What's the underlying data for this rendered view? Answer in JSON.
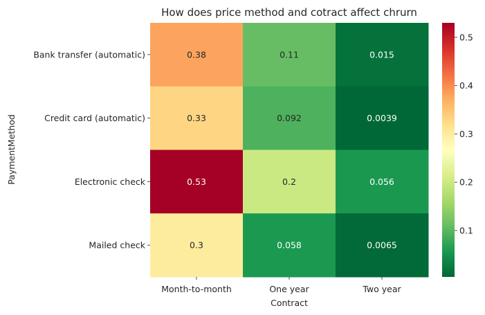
{
  "chart_data": {
    "type": "heatmap",
    "title": "How does price method and cotract affect chrurn",
    "xlabel": "Contract",
    "ylabel": "PaymentMethod",
    "x_categories": [
      "Month-to-month",
      "One year",
      "Two year"
    ],
    "y_categories": [
      "Bank transfer (automatic)",
      "Credit card (automatic)",
      "Electronic check",
      "Mailed check"
    ],
    "values": [
      [
        0.38,
        0.11,
        0.015
      ],
      [
        0.33,
        0.092,
        0.0039
      ],
      [
        0.53,
        0.2,
        0.056
      ],
      [
        0.3,
        0.058,
        0.0065
      ]
    ],
    "value_labels": [
      [
        "0.38",
        "0.11",
        "0.015"
      ],
      [
        "0.33",
        "0.092",
        "0.0039"
      ],
      [
        "0.53",
        "0.2",
        "0.056"
      ],
      [
        "0.3",
        "0.058",
        "0.0065"
      ]
    ],
    "colormap": "RdYlGn_r",
    "vmin": 0.0039,
    "vmax": 0.53,
    "colorbar_ticks": [
      0.1,
      0.2,
      0.3,
      0.4,
      0.5
    ],
    "colorbar_tick_labels": [
      "0.1",
      "0.2",
      "0.3",
      "0.4",
      "0.5"
    ],
    "grid": false
  }
}
